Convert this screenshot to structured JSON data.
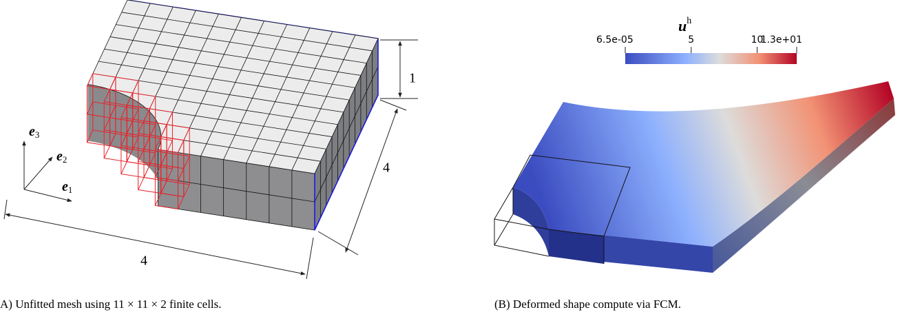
{
  "panel_a": {
    "caption": "A) Unfitted mesh using 11 × 11 × 2 finite cells.",
    "dimensions": {
      "height": "1",
      "depth": "4",
      "width": "4"
    },
    "axes": [
      {
        "symbol": "e",
        "index": "3"
      },
      {
        "symbol": "e",
        "index": "2"
      },
      {
        "symbol": "e",
        "index": "1"
      }
    ]
  },
  "panel_b": {
    "caption": "(B) Deformed shape compute via FCM.",
    "colorbar": {
      "title": "u",
      "title_superscript": "h",
      "range": [
        6.5e-05,
        13
      ],
      "ticks": [
        {
          "value": 6.5e-05,
          "label": "6.5e-05"
        },
        5,
        10,
        {
          "value": 13,
          "label": "1.3e+01"
        }
      ]
    }
  }
}
